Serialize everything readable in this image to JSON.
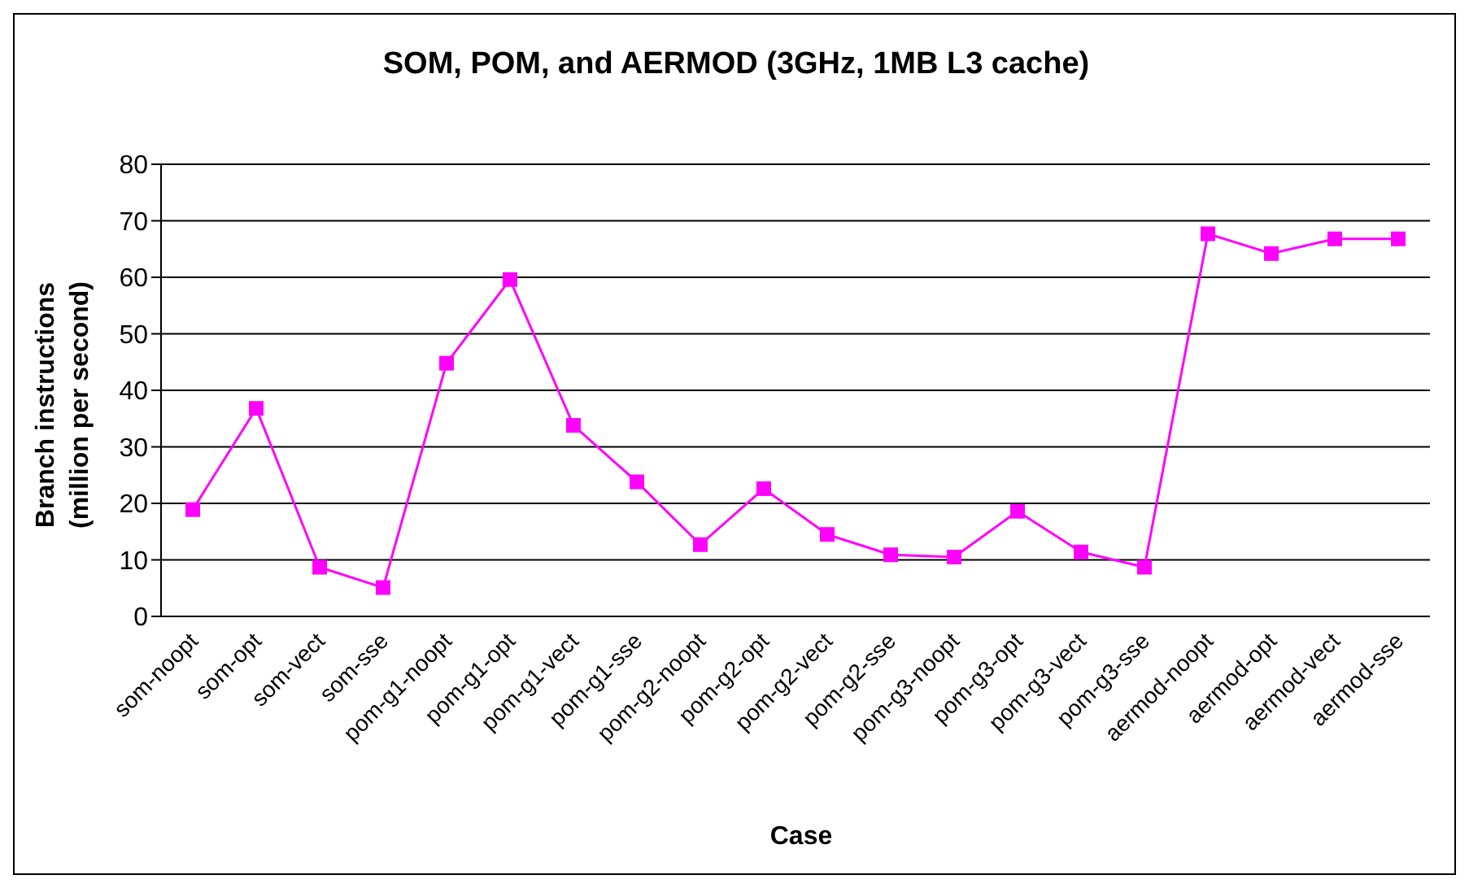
{
  "chart_data": {
    "type": "line",
    "title": "SOM, POM, and AERMOD (3GHz, 1MB L3 cache)",
    "xlabel": "Case",
    "ylabel": "Branch instructions\n(million per second)",
    "categories": [
      "som-noopt",
      "som-opt",
      "som-vect",
      "som-sse",
      "pom-g1-noopt",
      "pom-g1-opt",
      "pom-g1-vect",
      "pom-g1-sse",
      "pom-g2-noopt",
      "pom-g2-opt",
      "pom-g2-vect",
      "pom-g2-sse",
      "pom-g3-noopt",
      "pom-g3-opt",
      "pom-g3-vect",
      "pom-g3-sse",
      "aermod-noopt",
      "aermod-opt",
      "aermod-vect",
      "aermod-sse"
    ],
    "series": [
      {
        "color": "#ff00ff",
        "values": [
          18.9,
          36.8,
          8.7,
          5.1,
          44.8,
          59.6,
          33.8,
          23.8,
          12.7,
          22.6,
          14.5,
          10.9,
          10.5,
          18.6,
          11.4,
          8.7,
          67.7,
          64.2,
          66.8,
          66.8
        ]
      }
    ],
    "ylim": [
      0,
      80
    ],
    "yticks": [
      0,
      10,
      20,
      30,
      40,
      50,
      60,
      70,
      80
    ],
    "grid": "y",
    "legend": false,
    "marker": "square",
    "line_style": "solid"
  }
}
